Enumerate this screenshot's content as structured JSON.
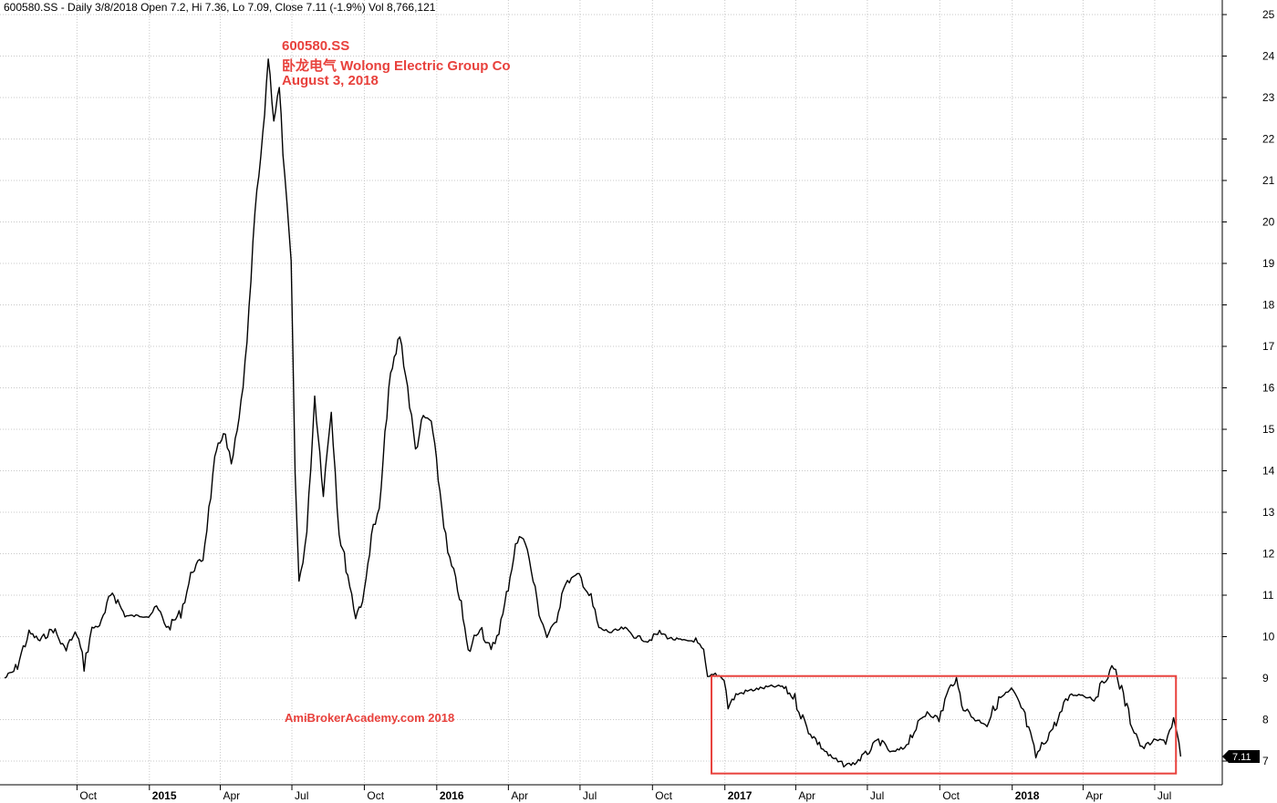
{
  "header": {
    "text": "600580.SS - Daily 3/8/2018 Open 7.2, Hi 7.36, Lo 7.09, Close 7.11 (-1.9%) Vol 8,766,121"
  },
  "annotations": {
    "symbol": "600580.SS",
    "name": "卧龙电气 Wolong Electric Group Co",
    "date": "August 3, 2018",
    "watermark": "AmiBrokerAcademy.com  2018"
  },
  "colors": {
    "price": "#000000",
    "annotation": "#e8413c",
    "grid": "#c8c8c8",
    "box": "#e8413c"
  },
  "chart_data": {
    "type": "line",
    "title": "600580.SS",
    "ylim": [
      6.6,
      25.3
    ],
    "y_ticks": [
      7,
      8,
      9,
      10,
      11,
      12,
      13,
      14,
      15,
      16,
      17,
      18,
      19,
      20,
      21,
      22,
      23,
      24,
      25
    ],
    "x_range": [
      "2014-07-01",
      "2018-08-06"
    ],
    "x_ticks": [
      {
        "date": "2014-10-01",
        "label": "Oct",
        "bold": false
      },
      {
        "date": "2015-01-01",
        "label": "2015",
        "bold": true
      },
      {
        "date": "2015-04-01",
        "label": "Apr",
        "bold": false
      },
      {
        "date": "2015-07-01",
        "label": "Jul",
        "bold": false
      },
      {
        "date": "2015-10-01",
        "label": "Oct",
        "bold": false
      },
      {
        "date": "2016-01-01",
        "label": "2016",
        "bold": true
      },
      {
        "date": "2016-04-01",
        "label": "Apr",
        "bold": false
      },
      {
        "date": "2016-07-01",
        "label": "Jul",
        "bold": false
      },
      {
        "date": "2016-10-01",
        "label": "Oct",
        "bold": false
      },
      {
        "date": "2017-01-01",
        "label": "2017",
        "bold": true
      },
      {
        "date": "2017-04-01",
        "label": "Apr",
        "bold": false
      },
      {
        "date": "2017-07-01",
        "label": "Jul",
        "bold": false
      },
      {
        "date": "2017-10-01",
        "label": "Oct",
        "bold": false
      },
      {
        "date": "2018-01-01",
        "label": "2018",
        "bold": true
      },
      {
        "date": "2018-04-01",
        "label": "Apr",
        "bold": false
      },
      {
        "date": "2018-07-01",
        "label": "Jul",
        "bold": false
      }
    ],
    "grid": true,
    "last_price": "7.11",
    "highlight_box": {
      "x_start": "2016-12-15",
      "x_end": "2018-07-28",
      "y_low": 6.7,
      "y_high": 9.05
    },
    "series": [
      {
        "values": [
          [
            "2014-07-01",
            9.0
          ],
          [
            "2014-07-15",
            9.2
          ],
          [
            "2014-08-01",
            10.1
          ],
          [
            "2014-08-15",
            9.9
          ],
          [
            "2014-09-01",
            10.2
          ],
          [
            "2014-09-15",
            9.7
          ],
          [
            "2014-10-01",
            10.1
          ],
          [
            "2014-10-10",
            9.3
          ],
          [
            "2014-10-20",
            10.2
          ],
          [
            "2014-11-01",
            10.3
          ],
          [
            "2014-11-15",
            11.1
          ],
          [
            "2014-12-01",
            10.5
          ],
          [
            "2014-12-31",
            10.5
          ],
          [
            "2015-01-10",
            10.7
          ],
          [
            "2015-01-25",
            10.2
          ],
          [
            "2015-02-10",
            10.6
          ],
          [
            "2015-02-25",
            11.6
          ],
          [
            "2015-03-10",
            11.9
          ],
          [
            "2015-03-25",
            14.2
          ],
          [
            "2015-04-05",
            15.0
          ],
          [
            "2015-04-15",
            14.1
          ],
          [
            "2015-04-25",
            15.2
          ],
          [
            "2015-05-05",
            17.0
          ],
          [
            "2015-05-15",
            20.2
          ],
          [
            "2015-05-25",
            22.0
          ],
          [
            "2015-06-01",
            24.0
          ],
          [
            "2015-06-08",
            22.5
          ],
          [
            "2015-06-15",
            23.2
          ],
          [
            "2015-06-22",
            21.0
          ],
          [
            "2015-06-30",
            19.0
          ],
          [
            "2015-07-05",
            14.0
          ],
          [
            "2015-07-10",
            11.3
          ],
          [
            "2015-07-20",
            12.5
          ],
          [
            "2015-07-30",
            15.8
          ],
          [
            "2015-08-10",
            13.5
          ],
          [
            "2015-08-20",
            15.5
          ],
          [
            "2015-08-30",
            12.5
          ],
          [
            "2015-09-10",
            11.5
          ],
          [
            "2015-09-20",
            10.5
          ],
          [
            "2015-10-01",
            11.0
          ],
          [
            "2015-10-10",
            12.5
          ],
          [
            "2015-10-20",
            13.0
          ],
          [
            "2015-11-01",
            16.0
          ],
          [
            "2015-11-15",
            17.3
          ],
          [
            "2015-11-25",
            16.0
          ],
          [
            "2015-12-05",
            14.5
          ],
          [
            "2015-12-15",
            15.3
          ],
          [
            "2015-12-25",
            15.2
          ],
          [
            "2016-01-05",
            13.5
          ],
          [
            "2016-01-15",
            12.0
          ],
          [
            "2016-01-30",
            11.0
          ],
          [
            "2016-02-10",
            9.6
          ],
          [
            "2016-02-25",
            10.3
          ],
          [
            "2016-03-10",
            9.6
          ],
          [
            "2016-03-25",
            10.5
          ],
          [
            "2016-04-10",
            12.2
          ],
          [
            "2016-04-20",
            12.5
          ],
          [
            "2016-04-30",
            11.6
          ],
          [
            "2016-05-10",
            10.6
          ],
          [
            "2016-05-20",
            10.0
          ],
          [
            "2016-05-30",
            10.3
          ],
          [
            "2016-06-10",
            11.2
          ],
          [
            "2016-06-20",
            11.4
          ],
          [
            "2016-06-30",
            11.5
          ],
          [
            "2016-07-05",
            11.3
          ],
          [
            "2016-07-15",
            10.9
          ],
          [
            "2016-07-25",
            10.2
          ],
          [
            "2016-08-10",
            10.1
          ],
          [
            "2016-08-25",
            10.2
          ],
          [
            "2016-09-10",
            10.0
          ],
          [
            "2016-09-25",
            9.9
          ],
          [
            "2016-10-10",
            10.1
          ],
          [
            "2016-10-25",
            9.95
          ],
          [
            "2016-11-10",
            9.9
          ],
          [
            "2016-11-25",
            9.9
          ],
          [
            "2016-12-05",
            9.6
          ],
          [
            "2016-12-10",
            9.0
          ],
          [
            "2016-12-20",
            9.1
          ],
          [
            "2016-12-31",
            9.0
          ],
          [
            "2017-01-05",
            8.3
          ],
          [
            "2017-01-15",
            8.6
          ],
          [
            "2017-02-01",
            8.7
          ],
          [
            "2017-02-15",
            8.75
          ],
          [
            "2017-03-01",
            8.8
          ],
          [
            "2017-03-15",
            8.8
          ],
          [
            "2017-03-31",
            8.5
          ],
          [
            "2017-04-15",
            7.8
          ],
          [
            "2017-05-01",
            7.4
          ],
          [
            "2017-05-15",
            7.1
          ],
          [
            "2017-06-01",
            6.9
          ],
          [
            "2017-06-15",
            6.95
          ],
          [
            "2017-07-01",
            7.2
          ],
          [
            "2017-07-15",
            7.5
          ],
          [
            "2017-08-01",
            7.2
          ],
          [
            "2017-08-15",
            7.3
          ],
          [
            "2017-09-01",
            7.8
          ],
          [
            "2017-09-15",
            8.2
          ],
          [
            "2017-09-30",
            8.0
          ],
          [
            "2017-10-10",
            8.6
          ],
          [
            "2017-10-20",
            9.0
          ],
          [
            "2017-10-31",
            8.3
          ],
          [
            "2017-11-15",
            8.0
          ],
          [
            "2017-11-30",
            7.9
          ],
          [
            "2017-12-15",
            8.5
          ],
          [
            "2017-12-31",
            8.7
          ],
          [
            "2018-01-15",
            8.2
          ],
          [
            "2018-01-31",
            7.1
          ],
          [
            "2018-02-15",
            7.6
          ],
          [
            "2018-02-28",
            8.0
          ],
          [
            "2018-03-15",
            8.6
          ],
          [
            "2018-03-31",
            8.6
          ],
          [
            "2018-04-15",
            8.5
          ],
          [
            "2018-04-30",
            9.0
          ],
          [
            "2018-05-10",
            9.3
          ],
          [
            "2018-05-20",
            8.7
          ],
          [
            "2018-05-31",
            8.0
          ],
          [
            "2018-06-15",
            7.3
          ],
          [
            "2018-06-30",
            7.5
          ],
          [
            "2018-07-15",
            7.5
          ],
          [
            "2018-07-25",
            8.0
          ],
          [
            "2018-08-03",
            7.11
          ]
        ]
      }
    ]
  }
}
